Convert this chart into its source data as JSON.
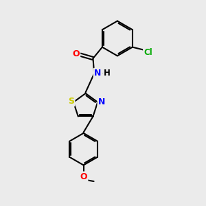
{
  "background_color": "#ebebeb",
  "bond_color": "#000000",
  "atom_colors": {
    "O": "#ff0000",
    "N": "#0000ff",
    "S": "#cccc00",
    "Cl": "#00aa00",
    "C": "#000000",
    "H": "#000000"
  },
  "figsize": [
    3.0,
    3.0
  ],
  "dpi": 100
}
